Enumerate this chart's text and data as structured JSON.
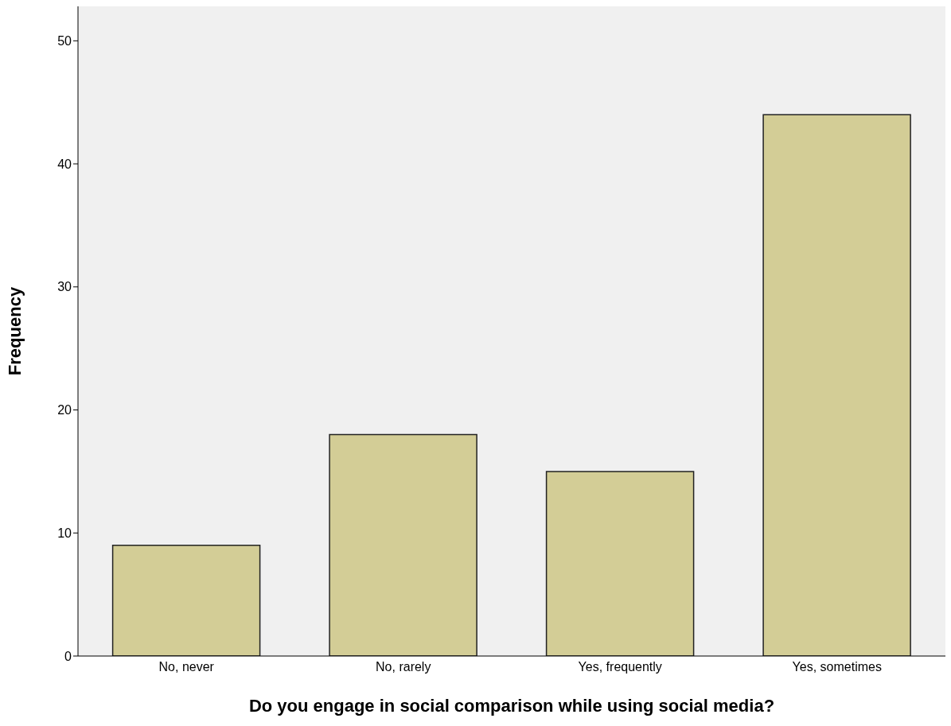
{
  "chart_data": {
    "type": "bar",
    "xlabel": "Do you engage in social comparison while using social media?",
    "ylabel": "Frequency",
    "categories": [
      "No, never",
      "No, rarely",
      "Yes, frequently",
      "Yes, sometimes"
    ],
    "values": [
      9,
      18,
      15,
      44
    ],
    "color": "#d3cd96",
    "ylim": [
      0,
      52.8
    ],
    "yticks": [
      0,
      10,
      20,
      30,
      40,
      50
    ]
  }
}
